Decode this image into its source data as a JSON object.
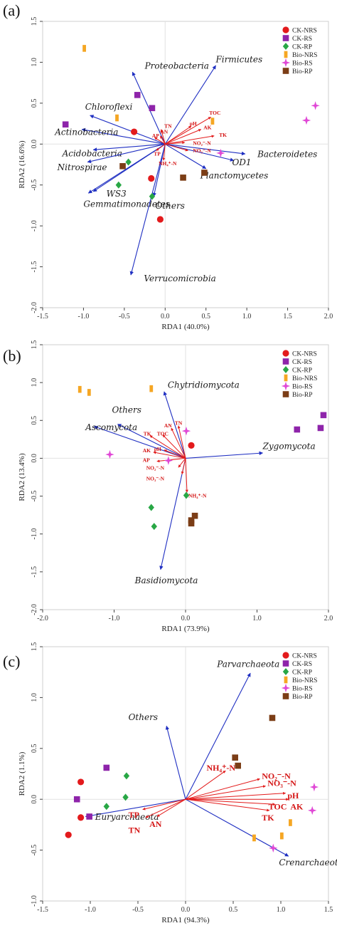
{
  "colors": {
    "axis": "#444444",
    "frame": "#cfcfcf",
    "zero": "#e2e2e2",
    "species_arrow": "#1f2fc2",
    "species_text": "#1a1a1a",
    "env_arrow": "#e31c1c",
    "env_text": "#d41515"
  },
  "chart_data": [
    {
      "type": "scatter",
      "panel_label": "(a)",
      "xlabel": "RDA1 (40.0%)",
      "ylabel": "RDA2 (16.6%)",
      "xlim": [
        -1.5,
        2.0
      ],
      "ylim": [
        -2.0,
        1.5
      ],
      "xticks": [
        "-1.5",
        "-1.0",
        "-0.5",
        "0.0",
        "0.5",
        "1.0",
        "1.5",
        "2.0"
      ],
      "xtick_values": [
        -1.5,
        -1.0,
        -0.5,
        0.0,
        0.5,
        1.0,
        1.5,
        2.0
      ],
      "yticks": [
        "-2.0",
        "-1.5",
        "-1.0",
        "-0.5",
        "0.0",
        "0.5",
        "1.0",
        "1.5"
      ],
      "ytick_values": [
        -2.0,
        -1.5,
        -1.0,
        -0.5,
        0.0,
        0.5,
        1.0,
        1.5
      ],
      "legend": {
        "position": "top-right"
      },
      "series": [
        {
          "name": "CK-NRS",
          "marker": "circle",
          "color": "#e31a1c",
          "points": [
            [
              -0.38,
              0.15
            ],
            [
              -0.17,
              -0.42
            ],
            [
              -0.06,
              -0.92
            ]
          ]
        },
        {
          "name": "CK-RS",
          "marker": "square",
          "color": "#8e24aa",
          "points": [
            [
              -1.22,
              0.24
            ],
            [
              -0.34,
              0.6
            ],
            [
              -0.16,
              0.44
            ]
          ]
        },
        {
          "name": "CK-RP",
          "marker": "diamond",
          "color": "#28a745",
          "points": [
            [
              -0.45,
              -0.22
            ],
            [
              -0.57,
              -0.5
            ],
            [
              -0.16,
              -0.64
            ]
          ]
        },
        {
          "name": "Bio-NRS",
          "marker": "bar",
          "color": "#f5a623",
          "points": [
            [
              -0.99,
              1.17
            ],
            [
              -0.59,
              0.32
            ],
            [
              0.58,
              0.28
            ]
          ]
        },
        {
          "name": "Bio-RS",
          "marker": "star",
          "color": "#e048d6",
          "points": [
            [
              1.84,
              0.47
            ],
            [
              1.73,
              0.29
            ],
            [
              0.68,
              -0.11
            ]
          ]
        },
        {
          "name": "Bio-RP",
          "marker": "square",
          "color": "#7b3d16",
          "points": [
            [
              -0.52,
              -0.27
            ],
            [
              0.22,
              -0.41
            ],
            [
              0.48,
              -0.35
            ]
          ]
        }
      ],
      "species_arrows": [
        {
          "label": "Proteobacteria",
          "x": -0.4,
          "y": 0.88,
          "tx": -0.25,
          "ty": 0.92
        },
        {
          "label": "Firmicutes",
          "x": 0.62,
          "y": 0.96,
          "tx": 0.62,
          "ty": 1.0
        },
        {
          "label": "Chloroflexi",
          "x": -0.92,
          "y": 0.35,
          "tx": -0.98,
          "ty": 0.42
        },
        {
          "label": "Actinobacteria",
          "x": -1.02,
          "y": 0.18,
          "tx": -1.35,
          "ty": 0.11
        },
        {
          "label": "Acidobacteria",
          "x": -0.88,
          "y": -0.07,
          "tx": -1.26,
          "ty": -0.15
        },
        {
          "label": "Nitrospirae",
          "x": -0.95,
          "y": -0.22,
          "tx": -1.32,
          "ty": -0.32
        },
        {
          "label": "WS3",
          "x": -0.88,
          "y": -0.58,
          "tx": -0.72,
          "ty": -0.64
        },
        {
          "label": "Gemmatimonadetes",
          "x": -0.94,
          "y": -0.6,
          "tx": -1.0,
          "ty": -0.77
        },
        {
          "label": "Bacteroidetes",
          "x": 0.98,
          "y": -0.12,
          "tx": 1.13,
          "ty": -0.16
        },
        {
          "label": "OD1",
          "x": 0.84,
          "y": -0.2,
          "tx": 0.82,
          "ty": -0.26
        },
        {
          "label": "Planctomycetes",
          "x": 0.5,
          "y": -0.3,
          "tx": 0.43,
          "ty": -0.42
        },
        {
          "label": "Others",
          "x": -0.14,
          "y": -0.64,
          "tx": -0.12,
          "ty": -0.79
        },
        {
          "label": "Verrucomicrobia",
          "x": -0.42,
          "y": -1.6,
          "tx": -0.26,
          "ty": -1.68
        }
      ],
      "env_arrows": [
        {
          "label": "TN",
          "x": -0.05,
          "y": 0.18,
          "tx": -0.01,
          "ty": 0.2
        },
        {
          "label": "TOC",
          "x": 0.56,
          "y": 0.33,
          "tx": 0.54,
          "ty": 0.36
        },
        {
          "label": "pH",
          "x": 0.32,
          "y": 0.22,
          "tx": 0.3,
          "ty": 0.23
        },
        {
          "label": "AK",
          "x": 0.44,
          "y": 0.18,
          "tx": 0.47,
          "ty": 0.18
        },
        {
          "label": "TK",
          "x": 0.6,
          "y": 0.1,
          "tx": 0.66,
          "ty": 0.09
        },
        {
          "label": "AP",
          "x": -0.13,
          "y": 0.08,
          "tx": -0.16,
          "ty": 0.08
        },
        {
          "label": "AN",
          "x": -0.06,
          "y": 0.1,
          "tx": -0.06,
          "ty": 0.13
        },
        {
          "label": "TP",
          "x": -0.11,
          "y": -0.08,
          "tx": -0.14,
          "ty": -0.14
        },
        {
          "label": "NO₂⁻-N",
          "x": 0.24,
          "y": 0.02,
          "tx": 0.34,
          "ty": -0.01
        },
        {
          "label": "NO₃⁻-N",
          "x": 0.28,
          "y": -0.08,
          "tx": 0.34,
          "ty": -0.1
        },
        {
          "label": "NH₄⁺-N",
          "x": -0.02,
          "y": -0.2,
          "tx": -0.08,
          "ty": -0.26
        }
      ]
    },
    {
      "type": "scatter",
      "panel_label": "(b)",
      "xlabel": "RDA1 (73.9%)",
      "ylabel": "RDA2 (13.4%)",
      "xlim": [
        -2.0,
        2.0
      ],
      "ylim": [
        -2.0,
        1.5
      ],
      "xticks": [
        "-2.0",
        "-1.0",
        "0.0",
        "1.0",
        "2.0"
      ],
      "xtick_values": [
        -2.0,
        -1.0,
        0.0,
        1.0,
        2.0
      ],
      "yticks": [
        "-2.0",
        "-1.5",
        "-1.0",
        "-0.5",
        "0.0",
        "0.5",
        "1.0",
        "1.5"
      ],
      "ytick_values": [
        -2.0,
        -1.5,
        -1.0,
        -0.5,
        0.0,
        0.5,
        1.0,
        1.5
      ],
      "legend": {
        "position": "top-right"
      },
      "series": [
        {
          "name": "CK-NRS",
          "marker": "circle",
          "color": "#e31a1c",
          "points": [
            [
              0.08,
              0.17
            ]
          ]
        },
        {
          "name": "CK-RS",
          "marker": "square",
          "color": "#8e24aa",
          "points": [
            [
              1.93,
              0.57
            ],
            [
              1.89,
              0.4
            ],
            [
              1.56,
              0.38
            ]
          ]
        },
        {
          "name": "CK-RP",
          "marker": "diamond",
          "color": "#28a745",
          "points": [
            [
              -0.48,
              -0.65
            ],
            [
              -0.44,
              -0.9
            ],
            [
              0.01,
              -0.49
            ]
          ]
        },
        {
          "name": "Bio-NRS",
          "marker": "bar",
          "color": "#f5a623",
          "points": [
            [
              -1.48,
              0.91
            ],
            [
              -1.35,
              0.87
            ],
            [
              -0.48,
              0.92
            ]
          ]
        },
        {
          "name": "Bio-RS",
          "marker": "star",
          "color": "#e048d6",
          "points": [
            [
              -1.06,
              0.05
            ],
            [
              0.01,
              0.36
            ],
            [
              -0.24,
              -0.03
            ]
          ]
        },
        {
          "name": "Bio-RP",
          "marker": "square",
          "color": "#7b3d16",
          "points": [
            [
              0.08,
              -0.82
            ],
            [
              0.13,
              -0.76
            ],
            [
              0.08,
              -0.86
            ]
          ]
        }
      ],
      "species_arrows": [
        {
          "label": "Chytridiomycota",
          "x": -0.3,
          "y": 0.88,
          "tx": -0.25,
          "ty": 0.93
        },
        {
          "label": "Others",
          "x": -0.95,
          "y": 0.45,
          "tx": -1.03,
          "ty": 0.6
        },
        {
          "label": "Ascomycota",
          "x": -1.28,
          "y": 0.42,
          "tx": -1.4,
          "ty": 0.37
        },
        {
          "label": "Zygomycota",
          "x": 1.08,
          "y": 0.07,
          "tx": 1.08,
          "ty": 0.12
        },
        {
          "label": "Basidiomycota",
          "x": -0.35,
          "y": -1.47,
          "tx": -0.71,
          "ty": -1.65
        }
      ],
      "env_arrows": [
        {
          "label": "TK",
          "x": -0.5,
          "y": 0.3,
          "tx": -0.59,
          "ty": 0.3
        },
        {
          "label": "TOC",
          "x": -0.32,
          "y": 0.31,
          "tx": -0.4,
          "ty": 0.3
        },
        {
          "label": "AN",
          "x": -0.2,
          "y": 0.4,
          "tx": -0.3,
          "ty": 0.41
        },
        {
          "label": "TN",
          "x": -0.1,
          "y": 0.43,
          "tx": -0.15,
          "ty": 0.44
        },
        {
          "label": "AK",
          "x": -0.45,
          "y": 0.08,
          "tx": -0.6,
          "ty": 0.08
        },
        {
          "label": "pH",
          "x": -0.3,
          "y": 0.11,
          "tx": -0.44,
          "ty": 0.1
        },
        {
          "label": "AP",
          "x": -0.4,
          "y": -0.04,
          "tx": -0.6,
          "ty": -0.05
        },
        {
          "label": "NO₂⁻-N",
          "x": -0.1,
          "y": -0.12,
          "tx": -0.55,
          "ty": -0.15
        },
        {
          "label": "NO₃⁻-N",
          "x": -0.05,
          "y": -0.21,
          "tx": -0.55,
          "ty": -0.29
        },
        {
          "label": "NH₄⁺-N",
          "x": 0.02,
          "y": -0.45,
          "tx": 0.04,
          "ty": -0.52
        }
      ]
    },
    {
      "type": "scatter",
      "panel_label": "(c)",
      "xlabel": "RDA1 (94.3%)",
      "ylabel": "RDA2 (1.1%)",
      "xlim": [
        -1.5,
        1.5
      ],
      "ylim": [
        -1.0,
        1.5
      ],
      "xticks": [
        "-1.5",
        "-1.0",
        "-0.5",
        "0.0",
        "0.5",
        "1.0",
        "1.5"
      ],
      "xtick_values": [
        -1.5,
        -1.0,
        -0.5,
        0.0,
        0.5,
        1.0,
        1.5
      ],
      "yticks": [
        "-1.0",
        "-0.5",
        "0.0",
        "0.5",
        "1.0",
        "1.5"
      ],
      "ytick_values": [
        -1.0,
        -0.5,
        0.0,
        0.5,
        1.0,
        1.5
      ],
      "legend": {
        "position": "top-right"
      },
      "series": [
        {
          "name": "CK-NRS",
          "marker": "circle",
          "color": "#e31a1c",
          "points": [
            [
              -1.1,
              0.17
            ],
            [
              -1.1,
              -0.18
            ],
            [
              -1.23,
              -0.35
            ]
          ]
        },
        {
          "name": "CK-RS",
          "marker": "square",
          "color": "#8e24aa",
          "points": [
            [
              -0.83,
              0.31
            ],
            [
              -1.14,
              0.0
            ],
            [
              -1.01,
              -0.17
            ]
          ]
        },
        {
          "name": "CK-RP",
          "marker": "diamond",
          "color": "#28a745",
          "points": [
            [
              -0.62,
              0.23
            ],
            [
              -0.63,
              0.02
            ],
            [
              -0.83,
              -0.07
            ]
          ]
        },
        {
          "name": "Bio-NRS",
          "marker": "bar",
          "color": "#f5a623",
          "points": [
            [
              0.72,
              -0.38
            ],
            [
              1.01,
              -0.36
            ],
            [
              1.1,
              -0.23
            ]
          ]
        },
        {
          "name": "Bio-RS",
          "marker": "star",
          "color": "#e048d6",
          "points": [
            [
              1.35,
              0.12
            ],
            [
              1.33,
              -0.11
            ],
            [
              0.92,
              -0.48
            ]
          ]
        },
        {
          "name": "Bio-RP",
          "marker": "square",
          "color": "#7b3d16",
          "points": [
            [
              0.91,
              0.8
            ],
            [
              0.55,
              0.33
            ],
            [
              0.52,
              0.41
            ]
          ]
        }
      ],
      "species_arrows": [
        {
          "label": "Parvarchaeota",
          "x": 0.68,
          "y": 1.24,
          "tx": 0.33,
          "ty": 1.3
        },
        {
          "label": "Others",
          "x": -0.2,
          "y": 0.72,
          "tx": -0.6,
          "ty": 0.78
        },
        {
          "label": "Euryarchaeota",
          "x": -1.05,
          "y": -0.17,
          "tx": -0.95,
          "ty": -0.2
        },
        {
          "label": "Crenarchaeota",
          "x": 1.08,
          "y": -0.56,
          "tx": 0.98,
          "ty": -0.65
        }
      ],
      "env_arrows": [
        {
          "label": "NH₄⁺-N",
          "x": 0.42,
          "y": 0.28,
          "tx": 0.22,
          "ty": 0.28
        },
        {
          "label": "NO₂⁻-N",
          "x": 0.78,
          "y": 0.2,
          "tx": 0.8,
          "ty": 0.2
        },
        {
          "label": "NO₃⁻-N",
          "x": 0.84,
          "y": 0.13,
          "tx": 0.86,
          "ty": 0.13
        },
        {
          "label": "pH",
          "x": 1.05,
          "y": 0.06,
          "tx": 1.07,
          "ty": 0.01
        },
        {
          "label": "AK",
          "x": 1.08,
          "y": 0.0,
          "tx": 1.1,
          "ty": -0.1
        },
        {
          "label": "TOC",
          "x": 0.94,
          "y": -0.05,
          "tx": 0.87,
          "ty": -0.1
        },
        {
          "label": "TK",
          "x": 0.88,
          "y": -0.11,
          "tx": 0.8,
          "ty": -0.21
        },
        {
          "label": "TP",
          "x": -0.45,
          "y": -0.1,
          "tx": -0.6,
          "ty": -0.18
        },
        {
          "label": "TN",
          "x": -0.42,
          "y": -0.18,
          "tx": -0.6,
          "ty": -0.33
        },
        {
          "label": "AN",
          "x": -0.3,
          "y": -0.17,
          "tx": -0.38,
          "ty": -0.27
        }
      ]
    }
  ]
}
